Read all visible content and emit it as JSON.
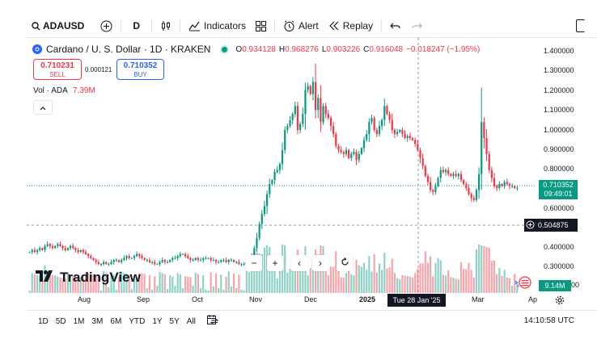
{
  "toolbar": {
    "symbol": "ADAUSD",
    "interval": "D",
    "indicators_label": "Indicators",
    "alert_label": "Alert",
    "replay_label": "Replay"
  },
  "legend": {
    "title": "Cardano / U. S. Dollar · 1D · KRAKEN",
    "o_label": "O",
    "o_value": "0.934128",
    "h_label": "H",
    "h_value": "0.968276",
    "l_label": "L",
    "l_value": "0.903226",
    "c_label": "C",
    "c_value": "0.916048",
    "change": "−0.018247 (−1.95%)"
  },
  "trade": {
    "sell_price": "0.710231",
    "sell_label": "SELL",
    "spread": "0.000121",
    "buy_price": "0.710352",
    "buy_label": "BUY"
  },
  "volume": {
    "label": "Vol · ADA",
    "value": "7.39M",
    "badge": "9.14M"
  },
  "price_axis": {
    "ticks": [
      "1.400000",
      "1.300000",
      "1.200000",
      "1.100000",
      "1.000000",
      "0.900000",
      "0.800000",
      "0.600000",
      "0.400000",
      "0.300000"
    ],
    "current_price": "0.710352",
    "countdown": "09:49:01",
    "crosshair_price": "0.504875",
    "partial_tick": "00"
  },
  "date_axis": {
    "ticks": [
      "Aug",
      "Sep",
      "Oct",
      "Nov",
      "Dec",
      "2025",
      "Mar",
      "Ap"
    ],
    "crosshair_date": "Tue 28 Jan '25"
  },
  "logo": {
    "text": "TradingView"
  },
  "ranges": [
    "1D",
    "5D",
    "1M",
    "3M",
    "6M",
    "YTD",
    "1Y",
    "5Y",
    "All"
  ],
  "clock": "14:10:58 UTC",
  "colors": {
    "up": "#089981",
    "down": "#f23645",
    "accent": "#2962ff"
  },
  "chart_data": {
    "type": "candlestick",
    "series_name": "ADAUSD",
    "y_range": [
      0.25,
      1.42
    ],
    "closes": [
      0.39,
      0.4,
      0.39,
      0.4,
      0.41,
      0.4,
      0.42,
      0.43,
      0.42,
      0.41,
      0.42,
      0.43,
      0.42,
      0.41,
      0.4,
      0.41,
      0.42,
      0.41,
      0.4,
      0.39,
      0.4,
      0.39,
      0.38,
      0.37,
      0.36,
      0.35,
      0.34,
      0.33,
      0.33,
      0.34,
      0.33,
      0.33,
      0.34,
      0.35,
      0.35,
      0.34,
      0.35,
      0.36,
      0.37,
      0.36,
      0.36,
      0.37,
      0.38,
      0.37,
      0.36,
      0.35,
      0.35,
      0.34,
      0.34,
      0.33,
      0.33,
      0.34,
      0.35,
      0.34,
      0.34,
      0.35,
      0.36,
      0.36,
      0.37,
      0.38,
      0.38,
      0.37,
      0.36,
      0.35,
      0.35,
      0.36,
      0.35,
      0.35,
      0.36,
      0.36,
      0.36,
      0.35,
      0.35,
      0.34,
      0.34,
      0.35,
      0.35,
      0.34,
      0.35,
      0.35,
      0.34,
      0.34,
      0.33,
      0.33,
      0.33,
      0.34,
      0.35,
      0.37,
      0.41,
      0.46,
      0.53,
      0.58,
      0.62,
      0.68,
      0.73,
      0.75,
      0.79,
      0.8,
      0.83,
      0.9,
      1.0,
      1.02,
      1.05,
      1.08,
      1.12,
      1.0,
      1.03,
      1.08,
      1.2,
      1.22,
      1.18,
      1.24,
      1.1,
      1.16,
      1.04,
      1.12,
      1.08,
      1.06,
      1.02,
      0.98,
      0.92,
      0.9,
      0.89,
      0.88,
      0.9,
      0.86,
      0.88,
      0.89,
      0.85,
      0.88,
      0.91,
      0.95,
      0.98,
      1.04,
      1.06,
      1.0,
      0.98,
      1.02,
      1.05,
      1.12,
      1.08,
      1.05,
      1.0,
      0.98,
      0.99,
      1.0,
      0.98,
      0.96,
      0.97,
      0.96,
      0.95,
      0.93,
      0.9,
      0.86,
      0.82,
      0.77,
      0.74,
      0.7,
      0.69,
      0.72,
      0.76,
      0.8,
      0.79,
      0.8,
      0.78,
      0.77,
      0.78,
      0.77,
      0.78,
      0.75,
      0.73,
      0.71,
      0.68,
      0.66,
      0.65,
      0.7,
      0.78,
      1.04,
      0.96,
      0.88,
      0.8,
      0.76,
      0.72,
      0.71,
      0.73,
      0.72,
      0.74,
      0.73,
      0.72,
      0.72,
      0.71,
      0.71
    ]
  }
}
